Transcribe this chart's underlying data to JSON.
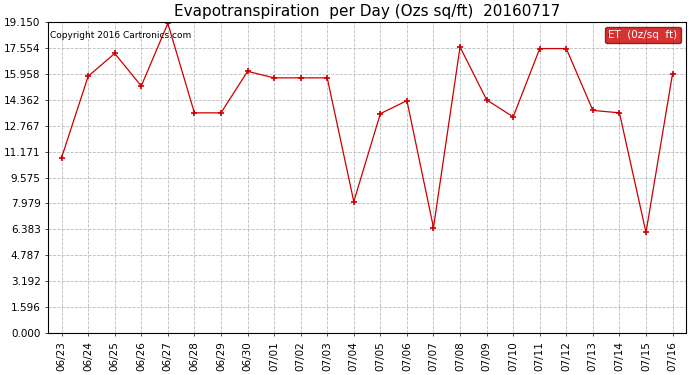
{
  "title": "Evapotranspiration  per Day (Ozs sq/ft)  20160717",
  "copyright": "Copyright 2016 Cartronics.com",
  "legend_label": "ET  (0z/sq  ft)",
  "x_labels": [
    "06/23",
    "06/24",
    "06/25",
    "06/26",
    "06/27",
    "06/28",
    "06/29",
    "06/30",
    "07/01",
    "07/02",
    "07/03",
    "07/04",
    "07/05",
    "07/06",
    "07/07",
    "07/08",
    "07/09",
    "07/10",
    "07/11",
    "07/12",
    "07/13",
    "07/14",
    "07/15",
    "07/16"
  ],
  "y_values": [
    10.8,
    15.8,
    17.2,
    15.2,
    19.05,
    13.55,
    13.55,
    16.1,
    15.7,
    15.7,
    15.7,
    8.1,
    13.5,
    14.3,
    6.5,
    17.6,
    14.35,
    13.3,
    17.5,
    17.5,
    13.7,
    13.55,
    6.2,
    15.96
  ],
  "y_ticks": [
    0.0,
    1.596,
    3.192,
    4.787,
    6.383,
    7.979,
    9.575,
    11.171,
    12.767,
    14.362,
    15.958,
    17.554,
    19.15
  ],
  "y_tick_labels": [
    "0.000",
    "1.596",
    "3.192",
    "4.787",
    "6.383",
    "7.979",
    "9.575",
    "11.171",
    "12.767",
    "14.362",
    "15.958",
    "17.554",
    "19.150"
  ],
  "line_color": "#cc0000",
  "marker": "+",
  "marker_size": 5,
  "marker_edge_width": 1.2,
  "line_width": 0.9,
  "background_color": "#ffffff",
  "grid_color": "#bbbbbb",
  "title_fontsize": 11,
  "tick_fontsize": 7.5,
  "copyright_fontsize": 6.5,
  "legend_bg": "#cc0000",
  "legend_text_color": "#ffffff",
  "legend_fontsize": 7.5
}
